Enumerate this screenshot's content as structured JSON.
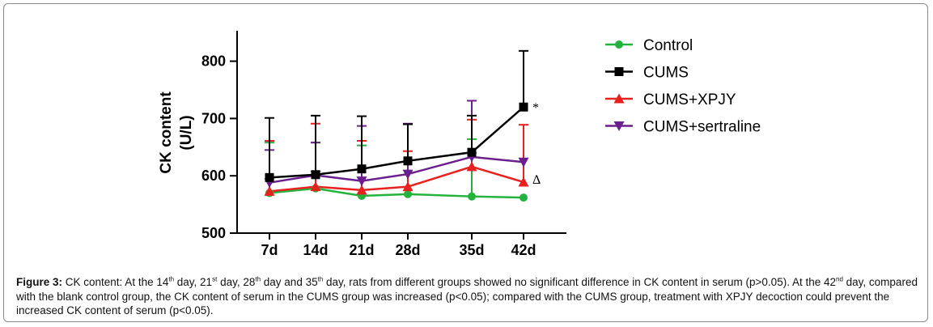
{
  "chart_data": {
    "type": "line",
    "ylabel": [
      "CK content",
      "(U/L)"
    ],
    "xlabel": "",
    "categories": [
      "7d",
      "14d",
      "21d",
      "28d",
      "35d",
      "42d"
    ],
    "ylim": [
      500,
      850
    ],
    "yticks": [
      500,
      600,
      700,
      800
    ],
    "grid": false,
    "legend_position": "right",
    "series": [
      {
        "name": "Control",
        "color": "#22b33c",
        "marker": "circle",
        "values": [
          570,
          578,
          565,
          568,
          564,
          562
        ],
        "error": [
          88,
          80,
          88,
          122,
          100,
          0
        ]
      },
      {
        "name": "CUMS",
        "color": "#000000",
        "marker": "square",
        "values": [
          597,
          602,
          612,
          626,
          641,
          720
        ],
        "error": [
          104,
          103,
          92,
          64,
          64,
          98
        ]
      },
      {
        "name": "CUMS+XPJY",
        "color": "#e8201e",
        "marker": "triangle-up",
        "values": [
          573,
          581,
          575,
          581,
          616,
          589
        ],
        "error": [
          88,
          110,
          86,
          62,
          82,
          100
        ]
      },
      {
        "name": "CUMS+sertraline",
        "color": "#6b1f8f",
        "marker": "triangle-down",
        "values": [
          588,
          601,
          591,
          603,
          633,
          624
        ],
        "error": [
          57,
          57,
          96,
          88,
          98,
          0
        ]
      }
    ],
    "annotations": [
      {
        "text": "*",
        "category": "42d",
        "series": "CUMS"
      },
      {
        "text": "Δ",
        "category": "42d",
        "series": "CUMS+XPJY"
      }
    ]
  },
  "caption": {
    "bold_label": "Figure 3:",
    "text_html": " CK content: At the 14<sup>th</sup> day, 21<sup>st</sup> day, 28<sup>th</sup> day and 35<sup>th</sup> day, rats from different groups showed no significant difference in CK content in serum (p>0.05). At the 42<sup>nd</sup> day, compared with the blank control group, the CK content of serum in the CUMS group was increased (p<0.05); compared with the CUMS group, treatment with XPJY decoction could prevent the increased CK content of serum (p<0.05)."
  }
}
